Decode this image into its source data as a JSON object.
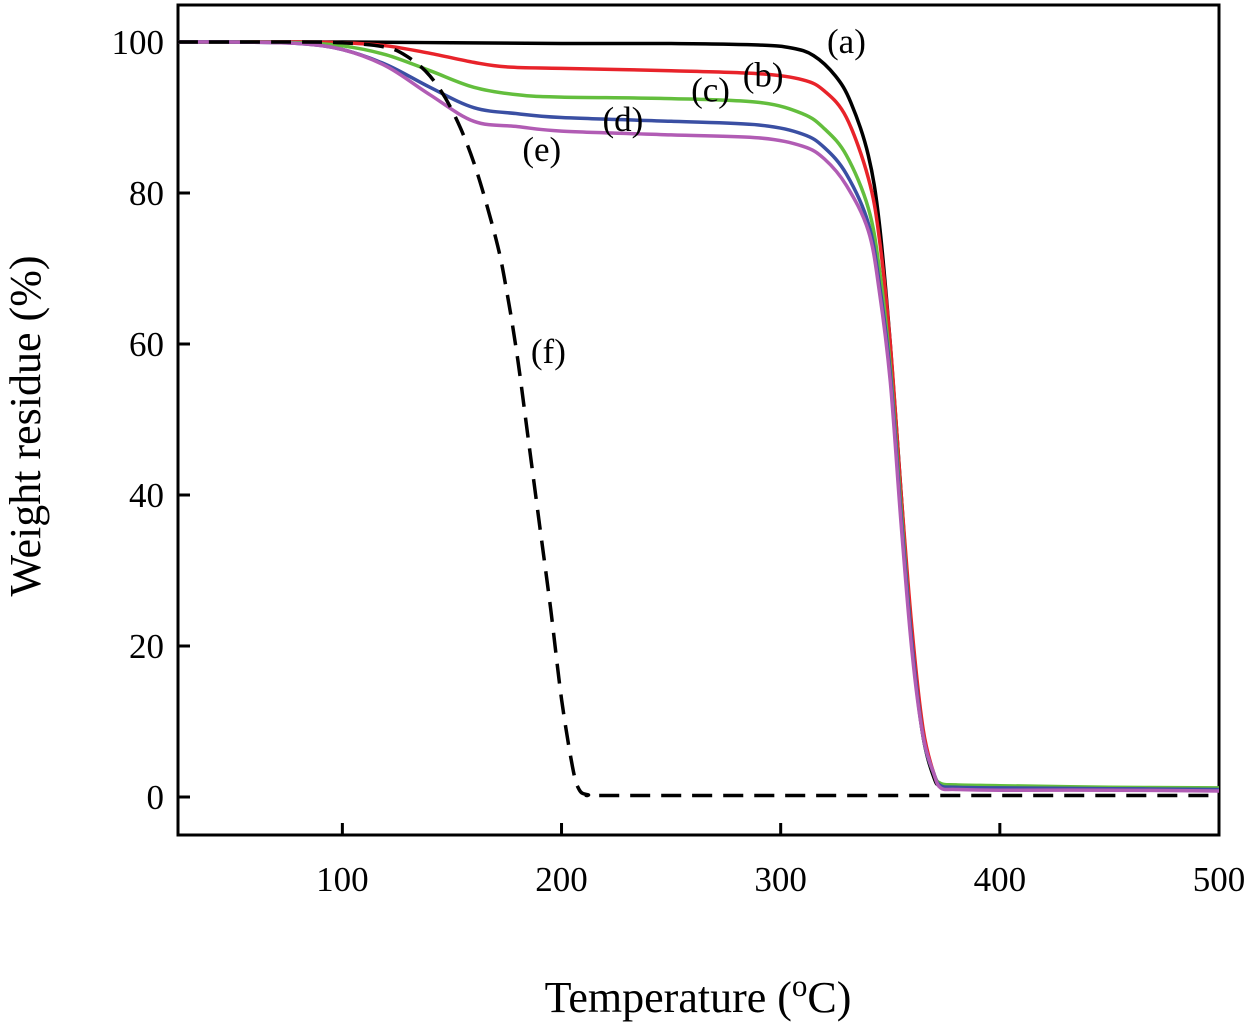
{
  "chart_data": {
    "type": "line",
    "title": "",
    "xlabel": {
      "prefix": "Temperature (",
      "superscript": "o",
      "suffix": "C)"
    },
    "ylabel": "Weight residue (%)",
    "xlim": [
      25,
      500
    ],
    "ylim": [
      0,
      100
    ],
    "xticks": [
      100,
      200,
      300,
      400,
      500
    ],
    "yticks": [
      0,
      20,
      40,
      60,
      80,
      100
    ],
    "grid": false,
    "legend": "none",
    "series": [
      {
        "name": "(a)",
        "color": "#000000",
        "dash": "solid",
        "x": [
          25,
          50,
          100,
          150,
          200,
          250,
          290,
          305,
          315,
          325,
          332,
          340,
          345,
          350,
          355,
          360,
          365,
          370,
          373,
          380,
          400,
          450,
          500
        ],
        "y": [
          100,
          100,
          100,
          99.9,
          99.8,
          99.8,
          99.6,
          99.2,
          98.2,
          95.5,
          92,
          85,
          76,
          60,
          40,
          20,
          8,
          2.5,
          1.5,
          1.3,
          1.2,
          1.1,
          1.0
        ]
      },
      {
        "name": "(b)",
        "color": "#e8232a",
        "dash": "solid",
        "x": [
          25,
          50,
          80,
          100,
          120,
          140,
          160,
          175,
          200,
          250,
          290,
          310,
          320,
          330,
          340,
          345,
          350,
          355,
          360,
          365,
          370,
          373,
          380,
          400,
          450,
          500
        ],
        "y": [
          100,
          100,
          100,
          99.9,
          99.5,
          98.5,
          97.3,
          96.7,
          96.5,
          96.2,
          95.8,
          95,
          93.5,
          90,
          82,
          74,
          60,
          40,
          22,
          9,
          3,
          1.6,
          1.4,
          1.3,
          1.2,
          1.1
        ]
      },
      {
        "name": "(c)",
        "color": "#63be3d",
        "dash": "solid",
        "x": [
          25,
          50,
          80,
          100,
          120,
          140,
          160,
          180,
          200,
          250,
          290,
          310,
          320,
          330,
          340,
          345,
          350,
          355,
          360,
          365,
          370,
          373,
          380,
          400,
          450,
          500
        ],
        "y": [
          100,
          100,
          99.9,
          99.5,
          98.3,
          96.2,
          94,
          93,
          92.7,
          92.5,
          92,
          90.5,
          88.5,
          85,
          78,
          70,
          57,
          38,
          20,
          8,
          3,
          1.8,
          1.6,
          1.5,
          1.3,
          1.2
        ]
      },
      {
        "name": "(d)",
        "color": "#3a4fa3",
        "dash": "solid",
        "x": [
          25,
          50,
          80,
          100,
          120,
          140,
          160,
          180,
          200,
          250,
          290,
          310,
          320,
          330,
          340,
          345,
          350,
          355,
          360,
          365,
          370,
          373,
          380,
          400,
          450,
          500
        ],
        "y": [
          100,
          100,
          99.8,
          99,
          97,
          94,
          91.3,
          90.5,
          90,
          89.5,
          89,
          87.8,
          86,
          82.5,
          76,
          68,
          56,
          37,
          20,
          8,
          3,
          1.5,
          1.3,
          1.2,
          1.1,
          1.0
        ]
      },
      {
        "name": "(e)",
        "color": "#b15cb4",
        "dash": "solid",
        "x": [
          25,
          50,
          80,
          100,
          120,
          140,
          160,
          180,
          200,
          250,
          290,
          310,
          320,
          330,
          340,
          345,
          350,
          355,
          360,
          365,
          370,
          373,
          380,
          400,
          450,
          500
        ],
        "y": [
          100,
          100,
          99.8,
          99,
          96.8,
          93,
          89.5,
          88.8,
          88.2,
          87.7,
          87.3,
          86.2,
          84.5,
          81,
          75,
          67,
          55,
          36,
          19,
          8,
          3,
          1.2,
          1.0,
          0.9,
          0.9,
          0.8
        ]
      },
      {
        "name": "(f)",
        "color": "#000000",
        "dash": "dashed",
        "x": [
          25,
          50,
          80,
          100,
          120,
          130,
          140,
          150,
          160,
          170,
          175,
          180,
          185,
          190,
          195,
          200,
          205,
          208,
          212,
          220,
          300,
          400,
          500
        ],
        "y": [
          100,
          100,
          100,
          99.9,
          99.3,
          98,
          95.5,
          91,
          84,
          74,
          67,
          58,
          47,
          36,
          25,
          13,
          4,
          1,
          0.3,
          0.2,
          0.2,
          0.2,
          0.2
        ]
      }
    ],
    "annotations": [
      {
        "text": "(a)",
        "x": 330,
        "y": 100.1
      },
      {
        "text": "(b)",
        "x": 292,
        "y": 95.7
      },
      {
        "text": "(c)",
        "x": 268,
        "y": 93.7
      },
      {
        "text": "(d)",
        "x": 228,
        "y": 89.8
      },
      {
        "text": "(e)",
        "x": 191,
        "y": 85.8
      },
      {
        "text": "(f)",
        "x": 194,
        "y": 59.1
      }
    ]
  }
}
